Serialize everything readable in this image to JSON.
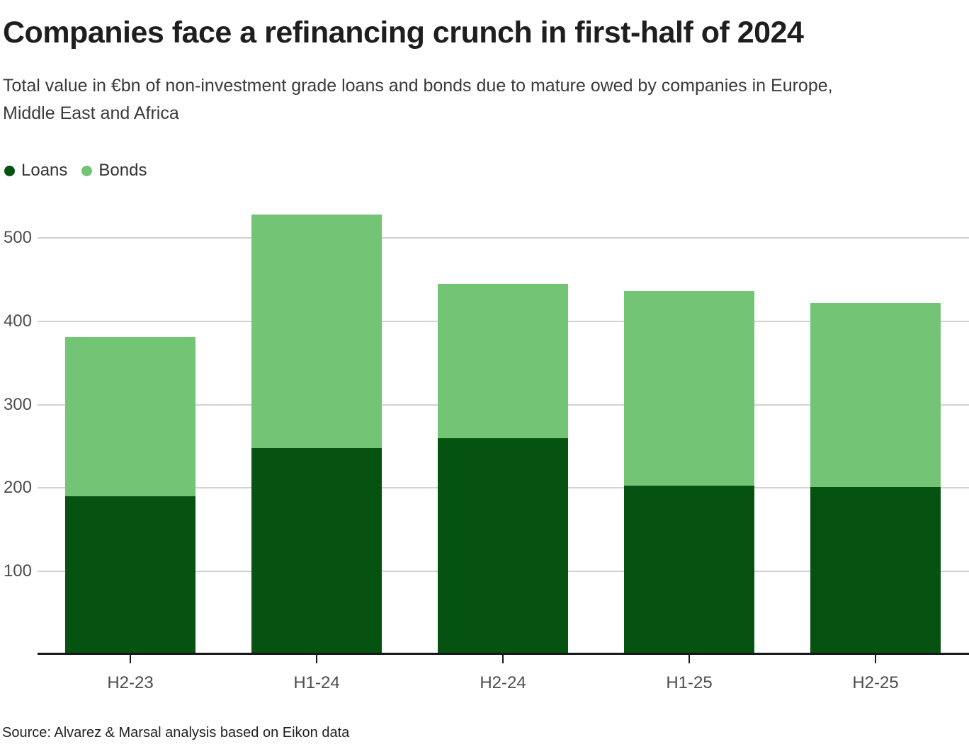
{
  "header": {
    "title": "Companies face a refinancing crunch in first-half of 2024",
    "subtitle_lines": [
      "Total value in €bn of non-investment grade loans and bonds due to mature owed by companies in Europe,",
      "Middle East and Africa"
    ]
  },
  "legend": [
    {
      "label": "Loans",
      "color": "#065210"
    },
    {
      "label": "Bonds",
      "color": "#74c476"
    }
  ],
  "chart_data": {
    "type": "bar",
    "stacked": true,
    "title": "Companies face a refinancing crunch in first-half of 2024",
    "subtitle": "Total value in €bn of non-investment grade loans and bonds due to mature owed by companies in Europe, Middle East and Africa",
    "categories": [
      "H2-23",
      "H1-24",
      "H2-24",
      "H1-25",
      "H2-25"
    ],
    "series": [
      {
        "name": "Loans",
        "color": "#065210",
        "values": [
          190,
          248,
          260,
          203,
          201
        ]
      },
      {
        "name": "Bonds",
        "color": "#74c476",
        "values": [
          191,
          280,
          185,
          233,
          221
        ]
      }
    ],
    "totals": [
      381,
      528,
      445,
      436,
      422
    ],
    "xlabel": "",
    "ylabel": "",
    "yticks": [
      100,
      200,
      300,
      400,
      500
    ],
    "ylim": [
      0,
      539
    ],
    "grid": true,
    "legend_position": "top-left"
  },
  "footer": {
    "source": "Source: Alvarez & Marsal analysis based on Eikon data"
  },
  "colors": {
    "loans": "#065210",
    "bonds": "#74c476",
    "grid": "#d2d2d2",
    "axis": "#16181a",
    "tick_label": "#4d4d4d",
    "title": "#1e1e1e",
    "subtitle": "#3a3a3a"
  }
}
